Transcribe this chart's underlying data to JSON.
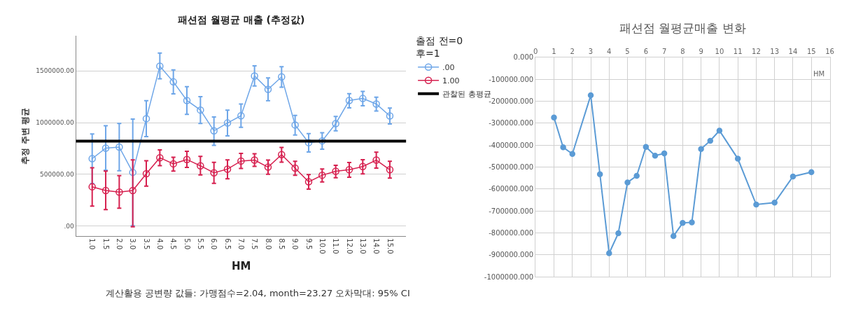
{
  "chart_data": [
    {
      "type": "line",
      "title": "패션점 월평균 매출 (추정값)",
      "xlabel": "HM",
      "ylabel": "추정 주변 평균",
      "legend_title": "출점 전=0\n후=1",
      "categories": [
        "1.0",
        "1.5",
        "2.0",
        "3.0",
        "3.5",
        "4.0",
        "4.5",
        "5.0",
        "5.5",
        "6.0",
        "6.5",
        "7.0",
        "7.5",
        "8.0",
        "8.5",
        "9.0",
        "9.5",
        "10.0",
        "11.0",
        "12.0",
        "13.0",
        "14.0",
        "15.0"
      ],
      "series": [
        {
          "name": ".00",
          "color": "#6ea6e8",
          "values": [
            651000,
            753000,
            763000,
            518000,
            1038000,
            1546000,
            1394000,
            1214000,
            1121000,
            920000,
            996000,
            1066000,
            1451000,
            1322000,
            1442000,
            977000,
            806000,
            823000,
            990000,
            1214000,
            1233000,
            1180000,
            1064000
          ],
          "errors": [
            [
              410000,
              890000
            ],
            [
              540000,
              969000
            ],
            [
              535000,
              992000
            ],
            [
              2000,
              1034000
            ],
            [
              865000,
              1212000
            ],
            [
              1423000,
              1673000
            ],
            [
              1277000,
              1510000
            ],
            [
              1079000,
              1347000
            ],
            [
              992000,
              1250000
            ],
            [
              780000,
              1055000
            ],
            [
              871000,
              1121000
            ],
            [
              954000,
              1180000
            ],
            [
              1354000,
              1548000
            ],
            [
              1212000,
              1432000
            ],
            [
              1343000,
              1540000
            ],
            [
              880000,
              1070000
            ],
            [
              715000,
              894000
            ],
            [
              742000,
              901000
            ],
            [
              920000,
              1060000
            ],
            [
              1142000,
              1280000
            ],
            [
              1163000,
              1301000
            ],
            [
              1112000,
              1246000
            ],
            [
              986000,
              1140000
            ]
          ]
        },
        {
          "name": "1.00",
          "color": "#d6204f",
          "values": [
            379000,
            343000,
            328000,
            343000,
            505000,
            660000,
            601000,
            643000,
            582000,
            514000,
            550000,
            628000,
            637000,
            569000,
            690000,
            560000,
            427000,
            491000,
            529000,
            544000,
            575000,
            637000,
            544000
          ],
          "errors": [
            [
              192000,
              563000
            ],
            [
              159000,
              531000
            ],
            [
              171000,
              486000
            ],
            [
              -8000,
              639000
            ],
            [
              385000,
              630000
            ],
            [
              584000,
              736000
            ],
            [
              531000,
              664000
            ],
            [
              567000,
              723000
            ],
            [
              493000,
              673000
            ],
            [
              412000,
              615000
            ],
            [
              457000,
              639000
            ],
            [
              556000,
              702000
            ],
            [
              577000,
              698000
            ],
            [
              501000,
              637000
            ],
            [
              618000,
              759000
            ],
            [
              490000,
              626000
            ],
            [
              357000,
              497000
            ],
            [
              425000,
              552000
            ],
            [
              467000,
              586000
            ],
            [
              472000,
              613000
            ],
            [
              503000,
              641000
            ],
            [
              560000,
              713000
            ],
            [
              463000,
              626000
            ]
          ]
        }
      ],
      "ref_lines": [
        {
          "axis": "y",
          "value": 821000,
          "label": "관찰된 총평균",
          "color": "#000000"
        }
      ],
      "ylim": [
        -100000,
        1840000
      ],
      "yticks": [
        {
          "value": 0,
          "label": ".00"
        },
        {
          "value": 500000,
          "label": "500000.00"
        },
        {
          "value": 1000000,
          "label": "1000000.00"
        },
        {
          "value": 1500000,
          "label": "1500000.00"
        }
      ],
      "grid": "y",
      "legend": "top right",
      "marker": "circle",
      "line_style": "solid",
      "annotations": [
        "계산활용 공변량 값들: 가맹점수=2.04, month=23.27 오차막대: 95% CI"
      ]
    },
    {
      "type": "line",
      "title": "패션점 월평균매출 변화",
      "xlabel": "HM",
      "x": [
        1,
        1.5,
        2,
        3,
        3.5,
        4,
        4.5,
        5,
        5.5,
        6,
        6.5,
        7,
        7.5,
        8,
        8.5,
        9,
        9.5,
        10,
        11,
        12,
        13,
        14,
        15
      ],
      "series": [
        {
          "color": "#5b9bd5",
          "values": [
            -274000,
            -410000,
            -440000,
            -173000,
            -533000,
            -893000,
            -802000,
            -570000,
            -540000,
            -408000,
            -448000,
            -438000,
            -815000,
            -755000,
            -752000,
            -418000,
            -380000,
            -334000,
            -462000,
            -671000,
            -662000,
            -543000,
            -523000
          ]
        }
      ],
      "xlim": [
        0,
        16
      ],
      "xticks": [
        0,
        1,
        2,
        3,
        4,
        5,
        6,
        7,
        8,
        9,
        10,
        11,
        12,
        13,
        14,
        15,
        16
      ],
      "ylim": [
        -1000000,
        0
      ],
      "yticks": [
        {
          "value": 0,
          "label": "0.000"
        },
        {
          "value": -100000,
          "label": "-100000.000"
        },
        {
          "value": -200000,
          "label": "-200000.000"
        },
        {
          "value": -300000,
          "label": "-300000.000"
        },
        {
          "value": -400000,
          "label": "-400000.000"
        },
        {
          "value": -500000,
          "label": "-500000.000"
        },
        {
          "value": -600000,
          "label": "-600000.000"
        },
        {
          "value": -700000,
          "label": "-700000.000"
        },
        {
          "value": -800000,
          "label": "-800000.000"
        },
        {
          "value": -900000,
          "label": "-900000.000"
        },
        {
          "value": -1000000,
          "label": "-1000000.000"
        }
      ],
      "grid": true,
      "legend": false,
      "marker": "circle",
      "line_style": "solid"
    }
  ]
}
